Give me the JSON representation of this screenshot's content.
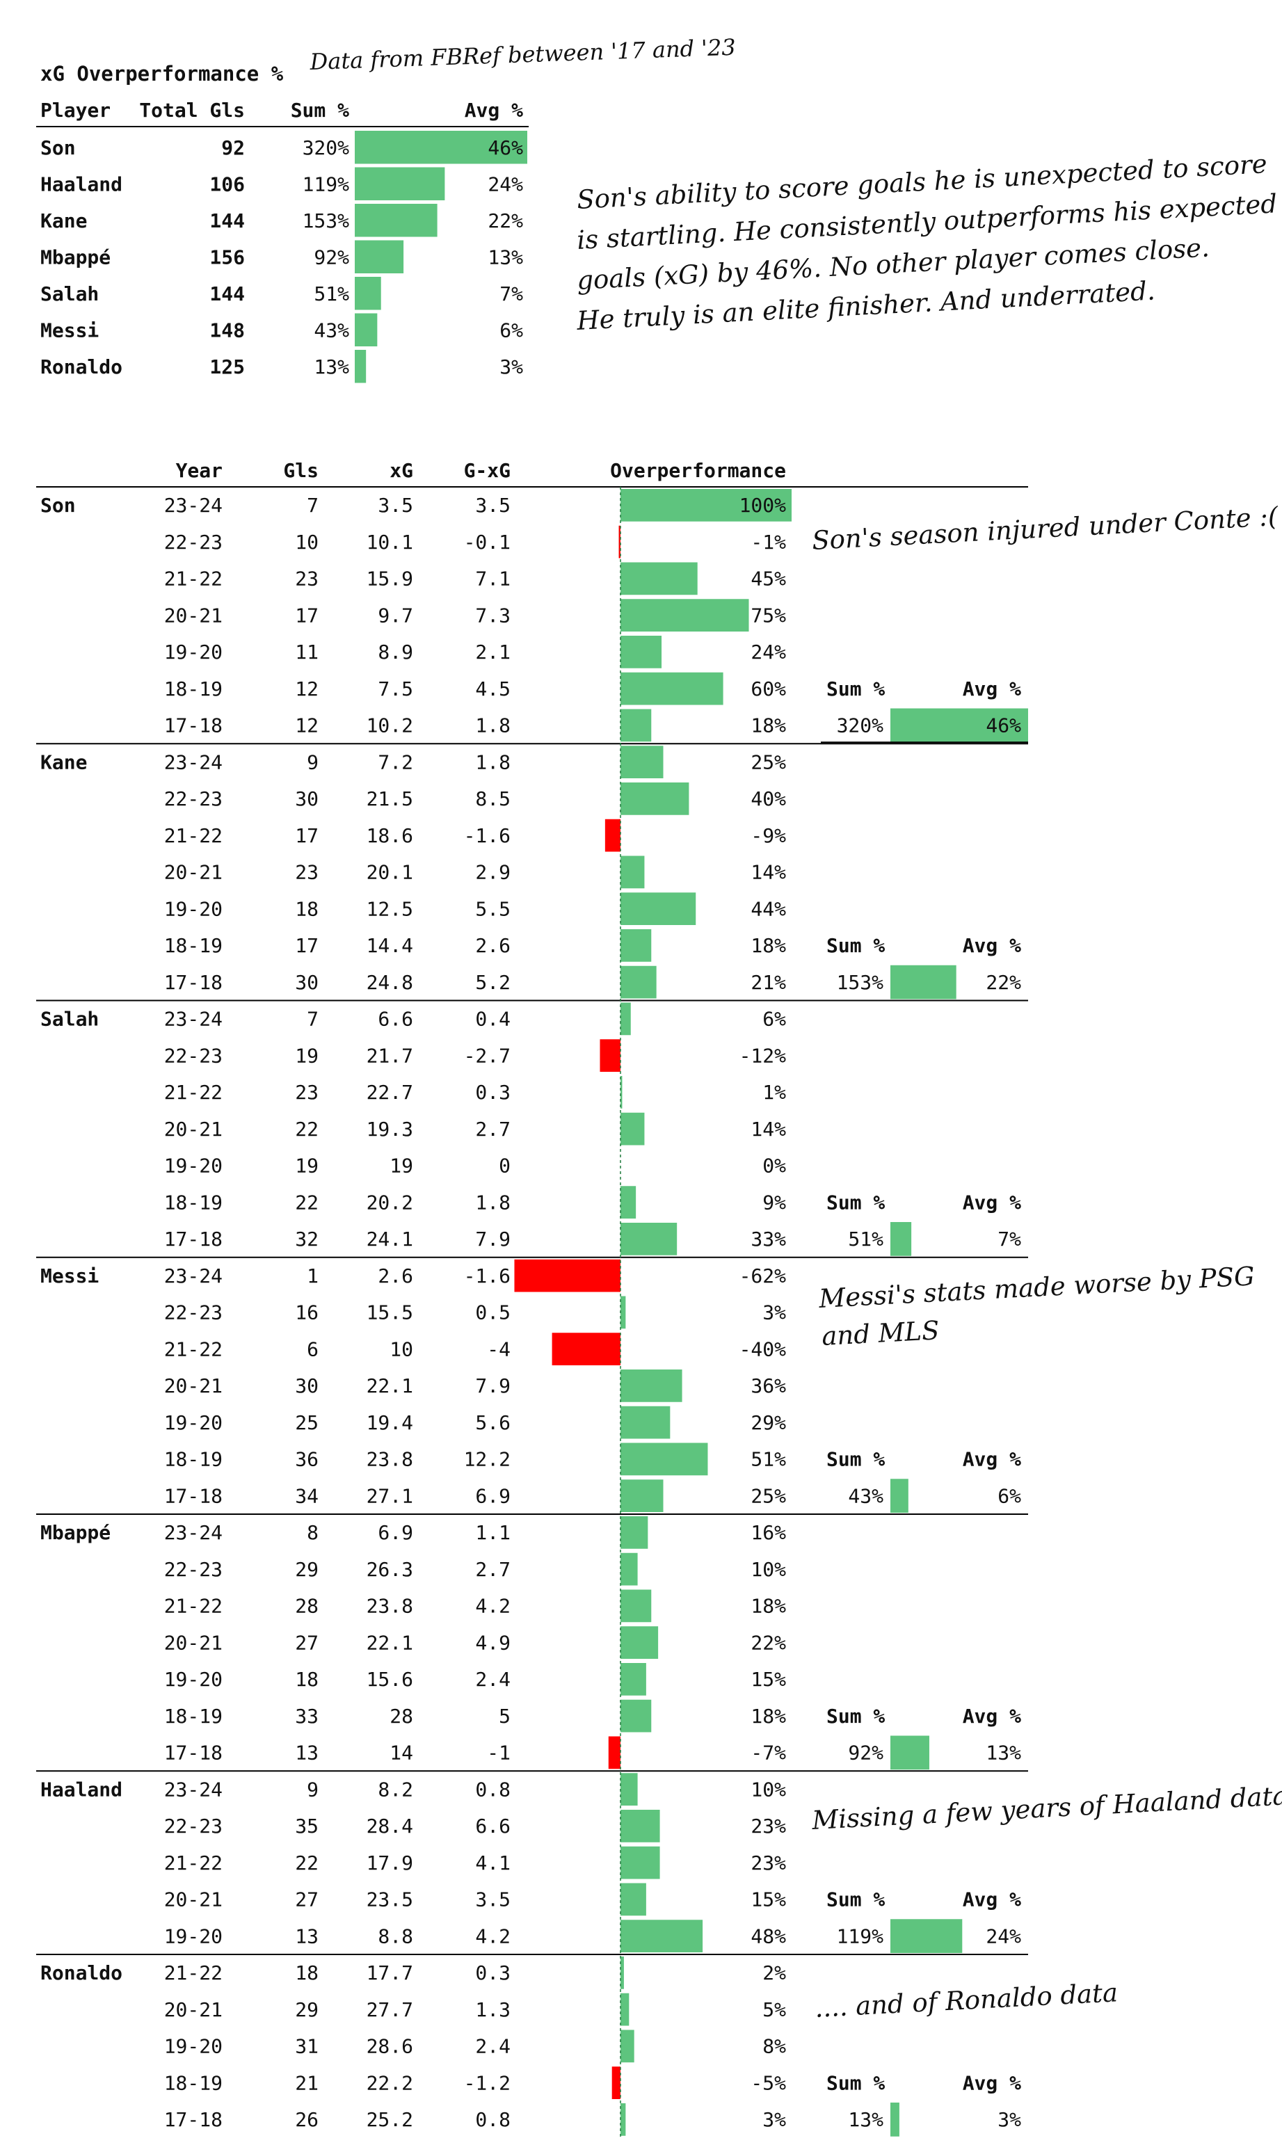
{
  "summary": {
    "title": "xG Overperformance %",
    "source_note": "Data from FBRef between '17 and '23",
    "headers": {
      "player": "Player",
      "total": "Total Gls",
      "sum": "Sum %",
      "avg": "Avg %"
    },
    "rows": [
      {
        "player": "Son",
        "total": "92",
        "sum": "320%",
        "avg": "46%",
        "avg_value": 46
      },
      {
        "player": "Haaland",
        "total": "106",
        "sum": "119%",
        "avg": "24%",
        "avg_value": 24
      },
      {
        "player": "Kane",
        "total": "144",
        "sum": "153%",
        "avg": "22%",
        "avg_value": 22
      },
      {
        "player": "Mbappé",
        "total": "156",
        "sum": "92%",
        "avg": "13%",
        "avg_value": 13
      },
      {
        "player": "Salah",
        "total": "144",
        "sum": "51%",
        "avg": "7%",
        "avg_value": 7
      },
      {
        "player": "Messi",
        "total": "148",
        "sum": "43%",
        "avg": "6%",
        "avg_value": 6
      },
      {
        "player": "Ronaldo",
        "total": "125",
        "sum": "13%",
        "avg": "3%",
        "avg_value": 3
      }
    ]
  },
  "detail_headers": {
    "year": "Year",
    "gls": "Gls",
    "xg": "xG",
    "gxg": "G-xG",
    "over": "Overperformance"
  },
  "sum_label": "Sum %",
  "avg_label": "Avg %",
  "players": [
    {
      "name": "Son",
      "sum": "320%",
      "avg": "46%",
      "avg_value": 46,
      "seasons": [
        {
          "year": "23-24",
          "gls": "7",
          "xg": "3.5",
          "gxg": "3.5",
          "over": "100%",
          "value": 100
        },
        {
          "year": "22-23",
          "gls": "10",
          "xg": "10.1",
          "gxg": "-0.1",
          "over": "-1%",
          "value": -1
        },
        {
          "year": "21-22",
          "gls": "23",
          "xg": "15.9",
          "gxg": "7.1",
          "over": "45%",
          "value": 45
        },
        {
          "year": "20-21",
          "gls": "17",
          "xg": "9.7",
          "gxg": "7.3",
          "over": "75%",
          "value": 75
        },
        {
          "year": "19-20",
          "gls": "11",
          "xg": "8.9",
          "gxg": "2.1",
          "over": "24%",
          "value": 24
        },
        {
          "year": "18-19",
          "gls": "12",
          "xg": "7.5",
          "gxg": "4.5",
          "over": "60%",
          "value": 60
        },
        {
          "year": "17-18",
          "gls": "12",
          "xg": "10.2",
          "gxg": "1.8",
          "over": "18%",
          "value": 18
        }
      ]
    },
    {
      "name": "Kane",
      "sum": "153%",
      "avg": "22%",
      "avg_value": 22,
      "seasons": [
        {
          "year": "23-24",
          "gls": "9",
          "xg": "7.2",
          "gxg": "1.8",
          "over": "25%",
          "value": 25
        },
        {
          "year": "22-23",
          "gls": "30",
          "xg": "21.5",
          "gxg": "8.5",
          "over": "40%",
          "value": 40
        },
        {
          "year": "21-22",
          "gls": "17",
          "xg": "18.6",
          "gxg": "-1.6",
          "over": "-9%",
          "value": -9
        },
        {
          "year": "20-21",
          "gls": "23",
          "xg": "20.1",
          "gxg": "2.9",
          "over": "14%",
          "value": 14
        },
        {
          "year": "19-20",
          "gls": "18",
          "xg": "12.5",
          "gxg": "5.5",
          "over": "44%",
          "value": 44
        },
        {
          "year": "18-19",
          "gls": "17",
          "xg": "14.4",
          "gxg": "2.6",
          "over": "18%",
          "value": 18
        },
        {
          "year": "17-18",
          "gls": "30",
          "xg": "24.8",
          "gxg": "5.2",
          "over": "21%",
          "value": 21
        }
      ]
    },
    {
      "name": "Salah",
      "sum": "51%",
      "avg": "7%",
      "avg_value": 7,
      "seasons": [
        {
          "year": "23-24",
          "gls": "7",
          "xg": "6.6",
          "gxg": "0.4",
          "over": "6%",
          "value": 6
        },
        {
          "year": "22-23",
          "gls": "19",
          "xg": "21.7",
          "gxg": "-2.7",
          "over": "-12%",
          "value": -12
        },
        {
          "year": "21-22",
          "gls": "23",
          "xg": "22.7",
          "gxg": "0.3",
          "over": "1%",
          "value": 1
        },
        {
          "year": "20-21",
          "gls": "22",
          "xg": "19.3",
          "gxg": "2.7",
          "over": "14%",
          "value": 14
        },
        {
          "year": "19-20",
          "gls": "19",
          "xg": "19",
          "gxg": "0",
          "over": "0%",
          "value": 0
        },
        {
          "year": "18-19",
          "gls": "22",
          "xg": "20.2",
          "gxg": "1.8",
          "over": "9%",
          "value": 9
        },
        {
          "year": "17-18",
          "gls": "32",
          "xg": "24.1",
          "gxg": "7.9",
          "over": "33%",
          "value": 33
        }
      ]
    },
    {
      "name": "Messi",
      "sum": "43%",
      "avg": "6%",
      "avg_value": 6,
      "seasons": [
        {
          "year": "23-24",
          "gls": "1",
          "xg": "2.6",
          "gxg": "-1.6",
          "over": "-62%",
          "value": -62
        },
        {
          "year": "22-23",
          "gls": "16",
          "xg": "15.5",
          "gxg": "0.5",
          "over": "3%",
          "value": 3
        },
        {
          "year": "21-22",
          "gls": "6",
          "xg": "10",
          "gxg": "-4",
          "over": "-40%",
          "value": -40
        },
        {
          "year": "20-21",
          "gls": "30",
          "xg": "22.1",
          "gxg": "7.9",
          "over": "36%",
          "value": 36
        },
        {
          "year": "19-20",
          "gls": "25",
          "xg": "19.4",
          "gxg": "5.6",
          "over": "29%",
          "value": 29
        },
        {
          "year": "18-19",
          "gls": "36",
          "xg": "23.8",
          "gxg": "12.2",
          "over": "51%",
          "value": 51
        },
        {
          "year": "17-18",
          "gls": "34",
          "xg": "27.1",
          "gxg": "6.9",
          "over": "25%",
          "value": 25
        }
      ]
    },
    {
      "name": "Mbappé",
      "sum": "92%",
      "avg": "13%",
      "avg_value": 13,
      "seasons": [
        {
          "year": "23-24",
          "gls": "8",
          "xg": "6.9",
          "gxg": "1.1",
          "over": "16%",
          "value": 16
        },
        {
          "year": "22-23",
          "gls": "29",
          "xg": "26.3",
          "gxg": "2.7",
          "over": "10%",
          "value": 10
        },
        {
          "year": "21-22",
          "gls": "28",
          "xg": "23.8",
          "gxg": "4.2",
          "over": "18%",
          "value": 18
        },
        {
          "year": "20-21",
          "gls": "27",
          "xg": "22.1",
          "gxg": "4.9",
          "over": "22%",
          "value": 22
        },
        {
          "year": "19-20",
          "gls": "18",
          "xg": "15.6",
          "gxg": "2.4",
          "over": "15%",
          "value": 15
        },
        {
          "year": "18-19",
          "gls": "33",
          "xg": "28",
          "gxg": "5",
          "over": "18%",
          "value": 18
        },
        {
          "year": "17-18",
          "gls": "13",
          "xg": "14",
          "gxg": "-1",
          "over": "-7%",
          "value": -7
        }
      ]
    },
    {
      "name": "Haaland",
      "sum": "119%",
      "avg": "24%",
      "avg_value": 24,
      "seasons": [
        {
          "year": "23-24",
          "gls": "9",
          "xg": "8.2",
          "gxg": "0.8",
          "over": "10%",
          "value": 10
        },
        {
          "year": "22-23",
          "gls": "35",
          "xg": "28.4",
          "gxg": "6.6",
          "over": "23%",
          "value": 23
        },
        {
          "year": "21-22",
          "gls": "22",
          "xg": "17.9",
          "gxg": "4.1",
          "over": "23%",
          "value": 23
        },
        {
          "year": "20-21",
          "gls": "27",
          "xg": "23.5",
          "gxg": "3.5",
          "over": "15%",
          "value": 15
        },
        {
          "year": "19-20",
          "gls": "13",
          "xg": "8.8",
          "gxg": "4.2",
          "over": "48%",
          "value": 48
        }
      ]
    },
    {
      "name": "Ronaldo",
      "sum": "13%",
      "avg": "3%",
      "avg_value": 3,
      "seasons": [
        {
          "year": "21-22",
          "gls": "18",
          "xg": "17.7",
          "gxg": "0.3",
          "over": "2%",
          "value": 2
        },
        {
          "year": "20-21",
          "gls": "29",
          "xg": "27.7",
          "gxg": "1.3",
          "over": "5%",
          "value": 5
        },
        {
          "year": "19-20",
          "gls": "31",
          "xg": "28.6",
          "gxg": "2.4",
          "over": "8%",
          "value": 8
        },
        {
          "year": "18-19",
          "gls": "21",
          "xg": "22.2",
          "gxg": "-1.2",
          "over": "-5%",
          "value": -5
        },
        {
          "year": "17-18",
          "gls": "26",
          "xg": "25.2",
          "gxg": "0.8",
          "over": "3%",
          "value": 3
        }
      ]
    }
  ],
  "annotations": {
    "intro": [
      "Son's ability to score goals he is unexpected to score",
      "is startling. He consistently outperforms his expected",
      "goals (xG) by 46%. No other player comes close.",
      "He truly is an elite finisher. And underrated."
    ],
    "son_note": "Son's season injured under Conte :(",
    "messi_note": [
      "Messi's stats made worse by PSG",
      "and MLS"
    ],
    "haaland_note": "Missing a few years of Haaland data",
    "ronaldo_note": ".... and of Ronaldo data"
  },
  "colors": {
    "positive": "#5ec47e",
    "negative": "#ff0000",
    "zero_line": "#1e7a3c",
    "rule": "#000000"
  },
  "chart_data": {
    "type": "bar",
    "title": "xG Overperformance %",
    "subtitle": "Data from FBRef between '17 and '23",
    "orientation": "horizontal",
    "summary_avg": {
      "categories": [
        "Son",
        "Haaland",
        "Kane",
        "Mbappé",
        "Salah",
        "Messi",
        "Ronaldo"
      ],
      "values": [
        46,
        24,
        22,
        13,
        7,
        6,
        3
      ]
    },
    "seasons": [
      "23-24",
      "22-23",
      "21-22",
      "20-21",
      "19-20",
      "18-19",
      "17-18"
    ],
    "series": [
      {
        "name": "Son",
        "values": [
          100,
          -1,
          45,
          75,
          24,
          60,
          18
        ]
      },
      {
        "name": "Kane",
        "values": [
          25,
          40,
          -9,
          14,
          44,
          18,
          21
        ]
      },
      {
        "name": "Salah",
        "values": [
          6,
          -12,
          1,
          14,
          0,
          9,
          33
        ]
      },
      {
        "name": "Messi",
        "values": [
          -62,
          3,
          -40,
          36,
          29,
          51,
          25
        ]
      },
      {
        "name": "Mbappé",
        "values": [
          16,
          10,
          18,
          22,
          15,
          18,
          -7
        ]
      },
      {
        "name": "Haaland",
        "values": [
          10,
          23,
          23,
          15,
          48,
          null,
          null
        ]
      },
      {
        "name": "Ronaldo",
        "values": [
          null,
          null,
          2,
          5,
          8,
          -5,
          3
        ]
      }
    ]
  }
}
